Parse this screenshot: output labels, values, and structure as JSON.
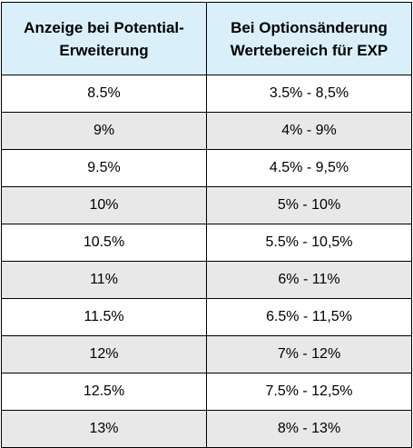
{
  "table": {
    "headers": [
      "Anzeige bei Potential-Erweiterung",
      "Bei Optionsänderung Wertebereich für EXP"
    ],
    "rows": [
      [
        "8.5%",
        "3.5% - 8,5%"
      ],
      [
        "9%",
        "4% - 9%"
      ],
      [
        "9.5%",
        "4.5% - 9,5%"
      ],
      [
        "10%",
        "5% - 10%"
      ],
      [
        "10.5%",
        "5.5% - 10,5%"
      ],
      [
        "11%",
        "6% - 11%"
      ],
      [
        "11.5%",
        "6.5% - 11,5%"
      ],
      [
        "12%",
        "7% - 12%"
      ],
      [
        "12.5%",
        "7.5% - 12,5%"
      ],
      [
        "13%",
        "8% - 13%"
      ]
    ],
    "colors": {
      "header_bg": "#d9f0fb",
      "row_alt_bg": "#e8e8e8",
      "row_bg": "#ffffff",
      "border": "#000000"
    }
  }
}
